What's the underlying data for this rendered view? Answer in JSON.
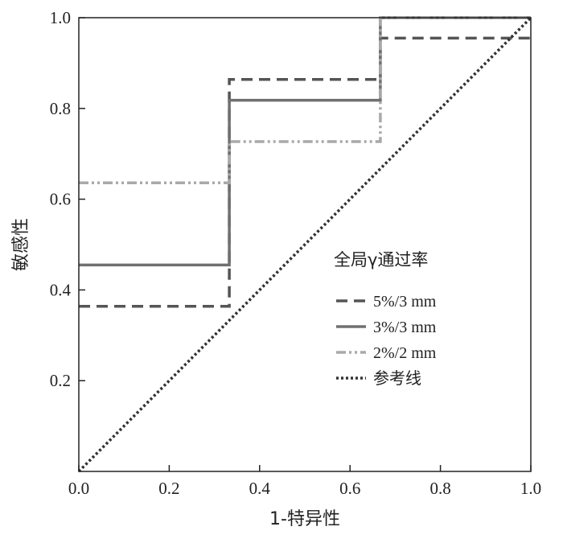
{
  "chart_data": {
    "type": "line",
    "step": true,
    "xlabel": "1-特异性",
    "ylabel": "敏感性",
    "xlim": [
      0,
      1
    ],
    "ylim": [
      0,
      1
    ],
    "x_ticks": [
      "0.0",
      "0.2",
      "0.4",
      "0.6",
      "0.8",
      "1.0"
    ],
    "y_ticks": [
      "0.2",
      "0.4",
      "0.6",
      "0.8",
      "1.0"
    ],
    "legend": {
      "title": "全局γ通过率",
      "placement": "center-right"
    },
    "series": [
      {
        "name": "5%/3 mm",
        "color": "#555555",
        "style": "dashed",
        "x": [
          0,
          0.333,
          0.333,
          0.667,
          0.667,
          1.0
        ],
        "y": [
          0.364,
          0.364,
          0.864,
          0.864,
          0.955,
          0.955
        ]
      },
      {
        "name": "3%/3 mm",
        "color": "#707070",
        "style": "solid",
        "x": [
          0,
          0.333,
          0.333,
          0.667,
          0.667,
          1.0
        ],
        "y": [
          0.455,
          0.455,
          0.818,
          0.818,
          1.0,
          1.0
        ]
      },
      {
        "name": "2%/2 mm",
        "color": "#a9a9a9",
        "style": "dash-dot-dot",
        "x": [
          0,
          0.333,
          0.333,
          0.667,
          0.667,
          1.0
        ],
        "y": [
          0.636,
          0.636,
          0.727,
          0.727,
          1.0,
          1.0
        ]
      },
      {
        "name": "参考线",
        "color": "#333333",
        "style": "dotted",
        "x": [
          0,
          1.0
        ],
        "y": [
          0,
          1.0
        ]
      }
    ]
  }
}
